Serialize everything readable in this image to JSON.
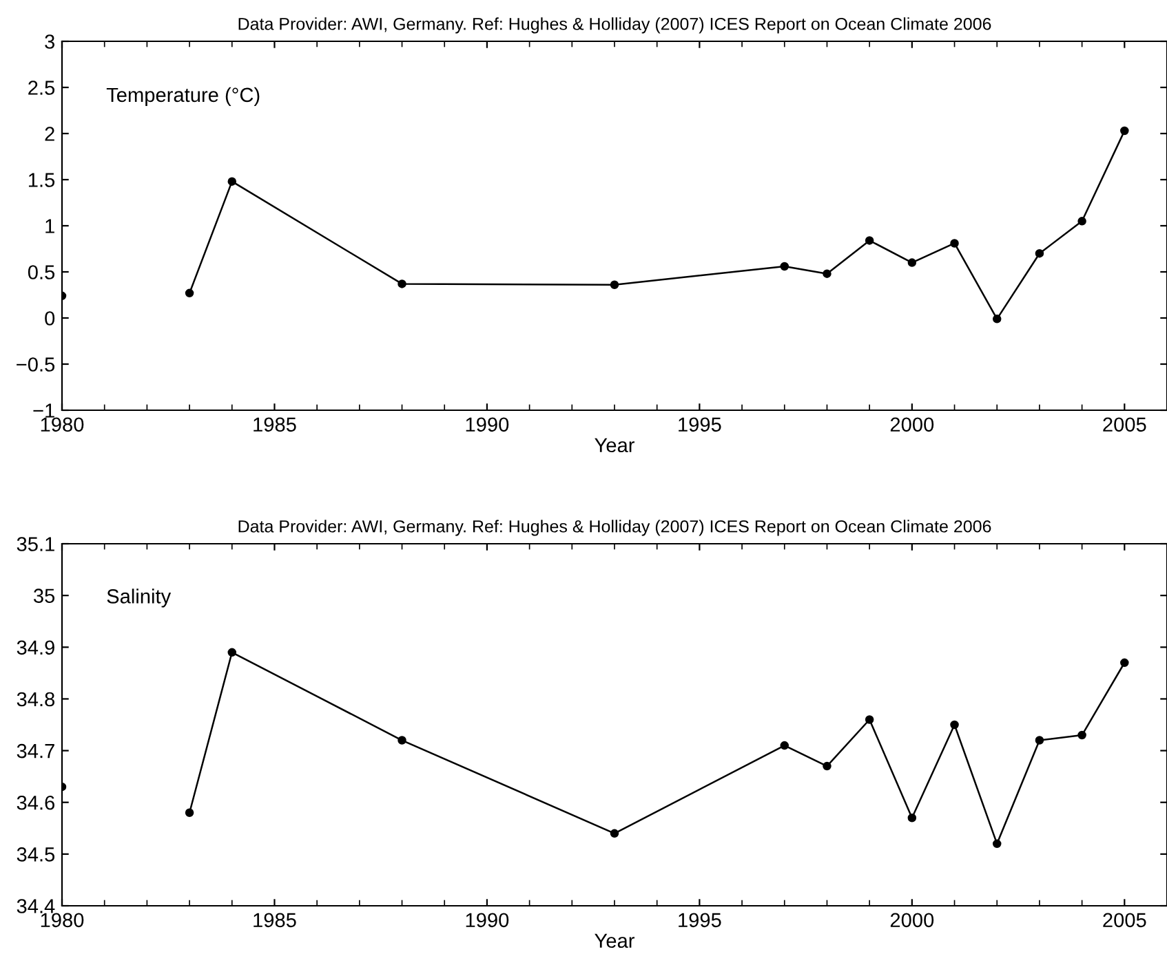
{
  "chart_data": [
    {
      "type": "line",
      "title": "Data Provider: AWI, Germany. Ref: Hughes & Holliday (2007) ICES Report on Ocean Climate 2006",
      "xlabel": "Year",
      "annotations": [
        "Temperature (°C)"
      ],
      "x": [
        1980,
        1981,
        1983,
        1984,
        1988,
        1993,
        1997,
        1998,
        1999,
        2000,
        2001,
        2002,
        2003,
        2004,
        2005
      ],
      "series": [
        {
          "color": "#000000",
          "values": [
            0.24,
            null,
            0.27,
            1.48,
            0.37,
            0.36,
            0.56,
            0.48,
            0.84,
            0.6,
            0.81,
            -0.01,
            0.7,
            1.05,
            2.03
          ]
        }
      ],
      "xlim": [
        1980,
        2006
      ],
      "xticks": [
        1980,
        1985,
        1990,
        1995,
        2000,
        2005
      ],
      "ylim": [
        -1,
        3
      ],
      "yticks": [
        -1,
        -0.5,
        0,
        0.5,
        1,
        1.5,
        2,
        2.5,
        3
      ],
      "marker": "circle",
      "line_style": "solid",
      "grid": false,
      "legend": false
    },
    {
      "type": "line",
      "title": "Data Provider: AWI, Germany. Ref: Hughes & Holliday (2007) ICES Report on Ocean Climate 2006",
      "xlabel": "Year",
      "annotations": [
        "Salinity"
      ],
      "x": [
        1980,
        1981,
        1983,
        1984,
        1988,
        1993,
        1997,
        1998,
        1999,
        2000,
        2001,
        2002,
        2003,
        2004,
        2005
      ],
      "series": [
        {
          "color": "#000000",
          "values": [
            34.63,
            null,
            34.58,
            34.89,
            34.72,
            34.54,
            34.71,
            34.67,
            34.76,
            34.57,
            34.75,
            34.52,
            34.72,
            34.73,
            34.87
          ]
        }
      ],
      "xlim": [
        1980,
        2006
      ],
      "xticks": [
        1980,
        1985,
        1990,
        1995,
        2000,
        2005
      ],
      "ylim": [
        34.4,
        35.1
      ],
      "yticks": [
        34.4,
        34.5,
        34.6,
        34.7,
        34.8,
        34.9,
        35,
        35.1
      ],
      "marker": "circle",
      "line_style": "solid",
      "grid": false,
      "legend": false
    }
  ]
}
